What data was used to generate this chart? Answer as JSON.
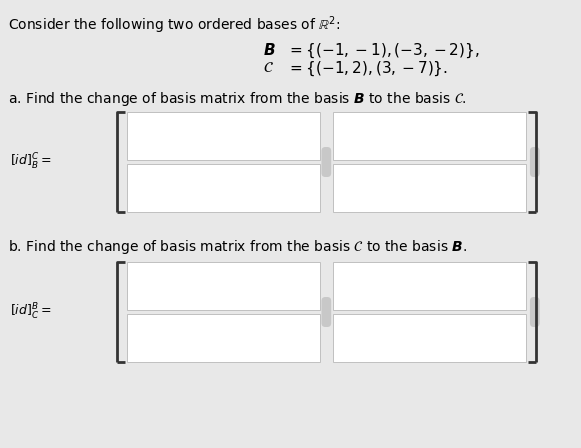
{
  "bg_color": "#e8e8e8",
  "title_text": "Consider the following two ordered bases of $\\mathbb{R}^2$:",
  "basis_B_label": "$\\boldsymbol{B}$",
  "basis_C_label": "$\\mathcal{C}$",
  "basis_B_eq": "$=  \\{(-1,-1),(-3,-2)\\},$",
  "basis_C_eq": "$=  \\{(-1,2),(3,-7)\\}.$",
  "part_a_text": "a. Find the change of basis matrix from the basis $\\boldsymbol{B}$ to the basis $\\mathcal{C}$.",
  "part_b_text": "b. Find the change of basis matrix from the basis $\\mathcal{C}$ to the basis $\\boldsymbol{B}$.",
  "label_a": "$[id]_B^C =$",
  "label_b": "$[id]_C^B =$",
  "box_fill": "#ffffff",
  "box_border": "#c0c0c0",
  "separator_color": "#c8c8c8",
  "bracket_color": "#333333",
  "font_size_title": 10,
  "font_size_basis": 11,
  "font_size_part": 10,
  "font_size_label": 9
}
